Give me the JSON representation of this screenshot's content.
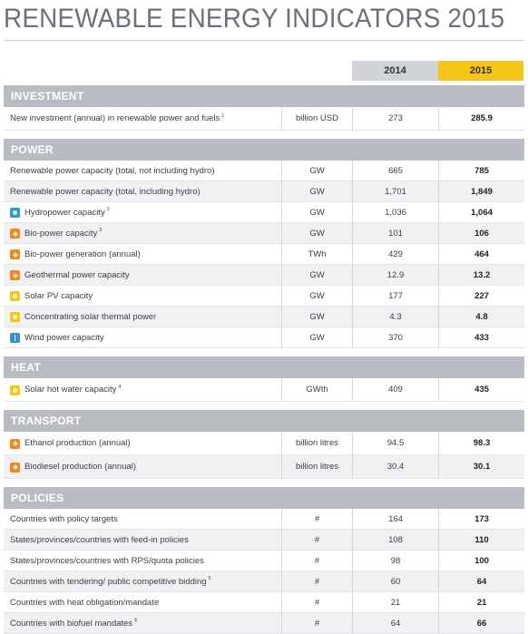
{
  "title": "RENEWABLE ENERGY INDICATORS 2015",
  "columns": {
    "y2014": "2014",
    "y2015": "2015"
  },
  "sections": [
    {
      "name": "INVESTMENT",
      "rows": [
        {
          "label": "New investment (annual) in renewable power and fuels",
          "note": "1",
          "unit": "billion USD",
          "v2014": "273",
          "v2015": "285.9",
          "icon": ""
        }
      ]
    },
    {
      "name": "POWER",
      "rows": [
        {
          "label": "Renewable power capacity (total, not including hydro)",
          "note": "",
          "unit": "GW",
          "v2014": "665",
          "v2015": "785",
          "icon": ""
        },
        {
          "label": "Renewable power capacity (total, including hydro)",
          "note": "",
          "unit": "GW",
          "v2014": "1,701",
          "v2015": "1,849",
          "icon": ""
        },
        {
          "label": "Hydropower capacity",
          "note": "2",
          "unit": "GW",
          "v2014": "1,036",
          "v2015": "1,064",
          "icon": "hydropower-icon"
        },
        {
          "label": "Bio-power capacity",
          "note": "3",
          "unit": "GW",
          "v2014": "101",
          "v2015": "106",
          "icon": "bioenergy-icon"
        },
        {
          "label": "Bio-power generation (annual)",
          "note": "",
          "unit": "TWh",
          "v2014": "429",
          "v2015": "464",
          "icon": "bioenergy-icon"
        },
        {
          "label": "Geothermal power capacity",
          "note": "",
          "unit": "GW",
          "v2014": "12.9",
          "v2015": "13.2",
          "icon": "geothermal-icon"
        },
        {
          "label": "Solar PV capacity",
          "note": "",
          "unit": "GW",
          "v2014": "177",
          "v2015": "227",
          "icon": "solar-icon"
        },
        {
          "label": "Concentrating solar thermal power",
          "note": "",
          "unit": "GW",
          "v2014": "4.3",
          "v2015": "4.8",
          "icon": "solar-icon"
        },
        {
          "label": "Wind power capacity",
          "note": "",
          "unit": "GW",
          "v2014": "370",
          "v2015": "433",
          "icon": "wind-icon"
        }
      ]
    },
    {
      "name": "HEAT",
      "rows": [
        {
          "label": "Solar hot water capacity",
          "note": "4",
          "unit": "GWth",
          "v2014": "409",
          "v2015": "435",
          "icon": "solar-icon"
        }
      ]
    },
    {
      "name": "TRANSPORT",
      "rows": [
        {
          "label": "Ethanol production (annual)",
          "note": "",
          "unit": "billion litres",
          "v2014": "94.5",
          "v2015": "98.3",
          "icon": "bioenergy-icon"
        },
        {
          "label": "Biodiesel production (annual)",
          "note": "",
          "unit": "billion litres",
          "v2014": "30.4",
          "v2015": "30.1",
          "icon": "bioenergy-icon"
        }
      ]
    },
    {
      "name": "POLICIES",
      "rows": [
        {
          "label": "Countries with policy targets",
          "note": "",
          "unit": "#",
          "v2014": "164",
          "v2015": "173",
          "icon": ""
        },
        {
          "label": "States/provinces/countries with feed-in policies",
          "note": "",
          "unit": "#",
          "v2014": "108",
          "v2015": "110",
          "icon": ""
        },
        {
          "label": "States/provinces/countries with RPS/quota policies",
          "note": "",
          "unit": "#",
          "v2014": "98",
          "v2015": "100",
          "icon": ""
        },
        {
          "label": "Countries with tendering/ public competitive bidding",
          "note": "5",
          "unit": "#",
          "v2014": "60",
          "v2015": "64",
          "icon": ""
        },
        {
          "label": "Countries with heat obligation/mandate",
          "note": "",
          "unit": "#",
          "v2014": "21",
          "v2015": "21",
          "icon": ""
        },
        {
          "label": "Countries with biofuel mandates",
          "note": "6",
          "unit": "#",
          "v2014": "64",
          "v2015": "66",
          "icon": ""
        }
      ]
    }
  ],
  "icon_colors": {
    "hydropower-icon": "#2f9bc4",
    "bioenergy-icon": "#f08a1e",
    "geothermal-icon": "#f08a1e",
    "solar-icon": "#f5c518",
    "wind-icon": "#3c8fcb"
  },
  "accent": {
    "highlight_2015": "#f5c518",
    "header_2014": "#d0d3d8",
    "section_bar": "#b9bcc3"
  }
}
